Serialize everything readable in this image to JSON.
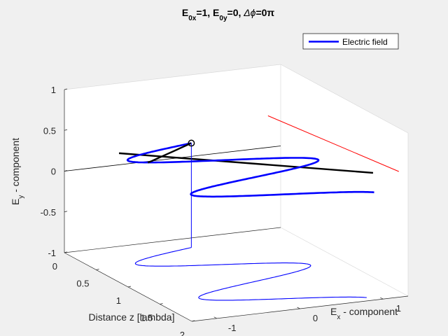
{
  "chart_data": {
    "type": "line3d",
    "title": {
      "prefix": "E",
      "sub1": "0x",
      "mid1": "=1, E",
      "sub2": "0y",
      "mid2": "=0, ",
      "greek": "Δϕ",
      "suffix": "=0π"
    },
    "legend": {
      "entries": [
        "Electric field"
      ],
      "location": "top-right"
    },
    "axes": {
      "z": {
        "label": "Distance z [lambda]",
        "range": [
          0,
          2
        ],
        "ticks": [
          0,
          0.5,
          1,
          1.5,
          2
        ],
        "tick_labels": [
          "0",
          "0.5",
          "1",
          "1.5",
          "2"
        ]
      },
      "x": {
        "label": {
          "main": "E",
          "sub": "x",
          "rest": " - component"
        },
        "range": [
          -1.3,
          1.3
        ],
        "ticks": [
          -1,
          0,
          1
        ],
        "tick_labels": [
          "-1",
          "0",
          "1"
        ]
      },
      "y": {
        "label": {
          "main": "E",
          "sub": "y",
          "rest": " - component"
        },
        "range": [
          -1,
          1
        ],
        "ticks": [
          -1,
          -0.5,
          0,
          0.5,
          1
        ],
        "tick_labels": [
          "-1",
          "-0.5",
          "0",
          "0.5",
          "1"
        ]
      }
    },
    "view": {
      "azimuth_deg": 43,
      "elevation_deg": 15
    },
    "field": {
      "amplitude_x": 1,
      "amplitude_y": 0,
      "phase_diff_pi": 0,
      "z_start": 0.23,
      "z_end": 1.92,
      "wavelengths_shown": 1.7
    },
    "series": [
      {
        "name": "Electric field",
        "color": "#0000ff"
      }
    ],
    "colors": {
      "field_curve": "#0000ff",
      "projection_curve": "#0000ff",
      "propagation_axis": "#ff0000",
      "current_vector": "#000000",
      "background": "#f0f0f0",
      "axes_face": "#ffffff"
    }
  }
}
